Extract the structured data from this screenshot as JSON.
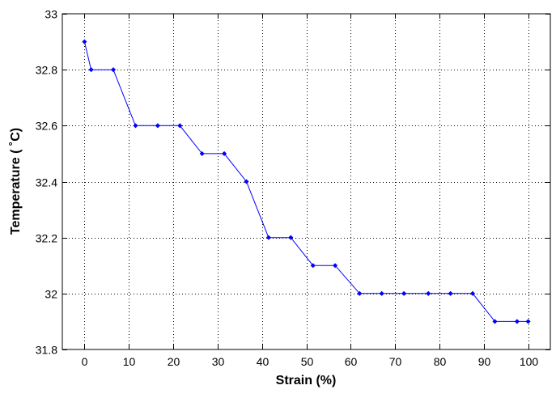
{
  "chart_data": {
    "type": "line",
    "title": "",
    "xlabel": "Strain (%)",
    "ylabel": "Temperature ( ˚C)",
    "xlim": [
      -5,
      105
    ],
    "ylim": [
      31.8,
      33
    ],
    "x_ticks": [
      0,
      10,
      20,
      30,
      40,
      50,
      60,
      70,
      80,
      90,
      100
    ],
    "x_tick_labels": [
      "0",
      "10",
      "20",
      "30",
      "40",
      "50",
      "60",
      "70",
      "80",
      "90",
      "100"
    ],
    "y_ticks": [
      31.8,
      32,
      32.2,
      32.4,
      32.6,
      32.8,
      33
    ],
    "y_tick_labels": [
      "31.8",
      "32",
      "32.2",
      "32.4",
      "32.6",
      "32.8",
      "33"
    ],
    "grid": true,
    "legend": "none",
    "series": [
      {
        "color": "#0000ff",
        "marker": "diamond",
        "x": [
          0,
          1.5,
          6.5,
          11.5,
          16.5,
          21.5,
          26.5,
          31.5,
          36.5,
          41.5,
          46.5,
          51.5,
          56.5,
          62,
          67,
          72,
          77.5,
          82.5,
          87.5,
          92.5,
          97.5,
          100
        ],
        "y": [
          32.9,
          32.8,
          32.8,
          32.6,
          32.6,
          32.6,
          32.5,
          32.5,
          32.4,
          32.2,
          32.2,
          32.1,
          32.1,
          32.0,
          32.0,
          32.0,
          32.0,
          32.0,
          32.0,
          31.9,
          31.9,
          31.9
        ]
      }
    ]
  }
}
